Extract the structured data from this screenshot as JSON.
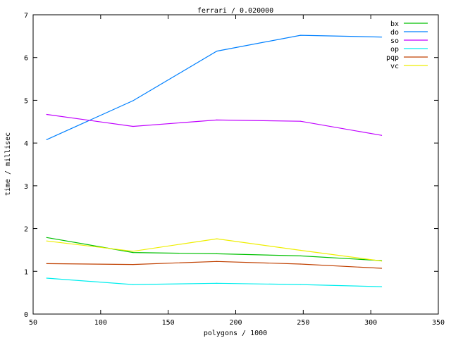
{
  "chart_data": {
    "type": "line",
    "title": "ferrari / 0.020000",
    "xlabel": "polygons / 1000",
    "ylabel": "time / millisec",
    "xlim": [
      50,
      350
    ],
    "ylim": [
      0,
      7
    ],
    "xticks": [
      50,
      100,
      150,
      200,
      250,
      300,
      350
    ],
    "yticks": [
      0,
      1,
      2,
      3,
      4,
      5,
      6,
      7
    ],
    "grid": false,
    "legend_position": "top-right",
    "x": [
      60,
      124,
      186,
      248,
      308
    ],
    "series": [
      {
        "name": "bx",
        "color": "#00c000",
        "values": [
          1.79,
          1.44,
          1.41,
          1.36,
          1.25
        ]
      },
      {
        "name": "do",
        "color": "#0080ff",
        "values": [
          4.08,
          4.99,
          6.15,
          6.52,
          6.48
        ]
      },
      {
        "name": "so",
        "color": "#c000ff",
        "values": [
          4.67,
          4.39,
          4.54,
          4.51,
          4.18
        ]
      },
      {
        "name": "op",
        "color": "#00eeee",
        "values": [
          0.84,
          0.69,
          0.72,
          0.69,
          0.64
        ]
      },
      {
        "name": "pqp",
        "color": "#c04000",
        "values": [
          1.18,
          1.16,
          1.23,
          1.17,
          1.07
        ]
      },
      {
        "name": "vc",
        "color": "#eeee00",
        "values": [
          1.71,
          1.47,
          1.76,
          1.49,
          1.24
        ]
      }
    ]
  }
}
